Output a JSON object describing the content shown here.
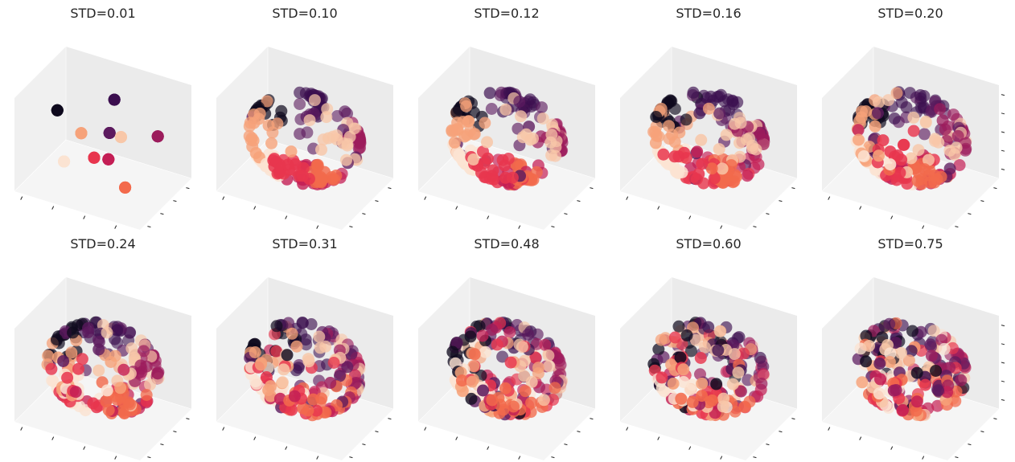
{
  "figure": {
    "palette": [
      "#0f0a1e",
      "#3b0f4f",
      "#5c1a5e",
      "#9c1c5c",
      "#c41f55",
      "#e8364e",
      "#f26a4c",
      "#f6a27a",
      "#f8c7a8",
      "#fbe3d2"
    ],
    "pane_colors": {
      "side": "#f0f0f0",
      "back": "#ebebeb",
      "floor": "#f5f5f5"
    }
  },
  "chart_data": [
    {
      "type": "scatter",
      "title": "STD=0.01",
      "std": 0.01,
      "dimensions": 3,
      "n_clusters": 10,
      "grid": false,
      "axis_tick_labels": false
    },
    {
      "type": "scatter",
      "title": "STD=0.10",
      "std": 0.1,
      "dimensions": 3,
      "n_clusters": 10,
      "grid": false,
      "axis_tick_labels": false
    },
    {
      "type": "scatter",
      "title": "STD=0.12",
      "std": 0.12,
      "dimensions": 3,
      "n_clusters": 10,
      "grid": false,
      "axis_tick_labels": false
    },
    {
      "type": "scatter",
      "title": "STD=0.16",
      "std": 0.16,
      "dimensions": 3,
      "n_clusters": 10,
      "grid": false,
      "axis_tick_labels": false
    },
    {
      "type": "scatter",
      "title": "STD=0.20",
      "std": 0.2,
      "dimensions": 3,
      "n_clusters": 10,
      "grid": false,
      "axis_tick_labels": false
    },
    {
      "type": "scatter",
      "title": "STD=0.24",
      "std": 0.24,
      "dimensions": 3,
      "n_clusters": 10,
      "grid": false,
      "axis_tick_labels": false
    },
    {
      "type": "scatter",
      "title": "STD=0.31",
      "std": 0.31,
      "dimensions": 3,
      "n_clusters": 10,
      "grid": false,
      "axis_tick_labels": false
    },
    {
      "type": "scatter",
      "title": "STD=0.48",
      "std": 0.48,
      "dimensions": 3,
      "n_clusters": 10,
      "grid": false,
      "axis_tick_labels": false
    },
    {
      "type": "scatter",
      "title": "STD=0.60",
      "std": 0.6,
      "dimensions": 3,
      "n_clusters": 10,
      "grid": false,
      "axis_tick_labels": false
    },
    {
      "type": "scatter",
      "title": "STD=0.75",
      "std": 0.75,
      "dimensions": 3,
      "n_clusters": 10,
      "grid": false,
      "axis_tick_labels": false
    }
  ]
}
